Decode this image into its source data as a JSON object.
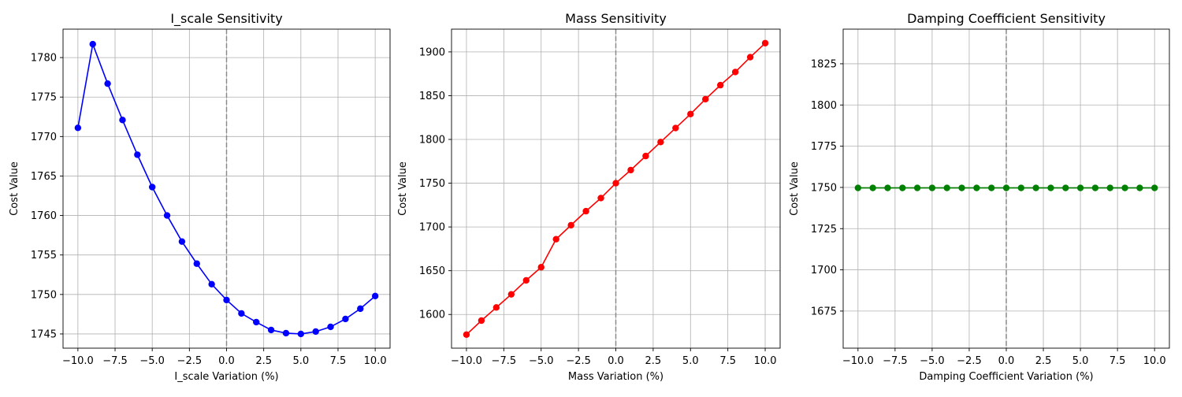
{
  "chart_data": [
    {
      "type": "line",
      "title": "I_scale Sensitivity",
      "xlabel": "I_scale Variation (%)",
      "ylabel": "Cost Value",
      "xlim": [
        -11,
        11
      ],
      "ylim": [
        1743.2,
        1783.6
      ],
      "xticks": [
        -10.0,
        -7.5,
        -5.0,
        -2.5,
        0.0,
        2.5,
        5.0,
        7.5,
        10.0
      ],
      "xtick_labels": [
        "−10.0",
        "−7.5",
        "−5.0",
        "−2.5",
        "0.0",
        "2.5",
        "5.0",
        "7.5",
        "10.0"
      ],
      "yticks": [
        1745,
        1750,
        1755,
        1760,
        1765,
        1770,
        1775,
        1780
      ],
      "ytick_labels": [
        "1745",
        "1750",
        "1755",
        "1760",
        "1765",
        "1770",
        "1775",
        "1780"
      ],
      "grid": true,
      "reference_line_x": 0,
      "color": "#0000ff",
      "x": [
        -10,
        -9,
        -8,
        -7,
        -6,
        -5,
        -4,
        -3,
        -2,
        -1,
        0,
        1,
        2,
        3,
        4,
        5,
        6,
        7,
        8,
        9,
        10
      ],
      "y": [
        1771.1,
        1781.7,
        1776.7,
        1772.1,
        1767.7,
        1763.6,
        1760.0,
        1756.7,
        1753.9,
        1751.3,
        1749.3,
        1747.6,
        1746.5,
        1745.5,
        1745.1,
        1745.0,
        1745.3,
        1745.9,
        1746.9,
        1748.2,
        1749.8
      ]
    },
    {
      "type": "line",
      "title": "Mass Sensitivity",
      "xlabel": "Mass Variation (%)",
      "ylabel": "Cost Value",
      "xlim": [
        -11,
        11
      ],
      "ylim": [
        1561.5,
        1926.0
      ],
      "xticks": [
        -10.0,
        -7.5,
        -5.0,
        -2.5,
        0.0,
        2.5,
        5.0,
        7.5,
        10.0
      ],
      "xtick_labels": [
        "−10.0",
        "−7.5",
        "−5.0",
        "−2.5",
        "0.0",
        "2.5",
        "5.0",
        "7.5",
        "10.0"
      ],
      "yticks": [
        1600,
        1650,
        1700,
        1750,
        1800,
        1850,
        1900
      ],
      "ytick_labels": [
        "1600",
        "1650",
        "1700",
        "1750",
        "1800",
        "1850",
        "1900"
      ],
      "grid": true,
      "reference_line_x": 0,
      "color": "#ff0000",
      "x": [
        -10,
        -9,
        -8,
        -7,
        -6,
        -5,
        -4,
        -3,
        -2,
        -1,
        0,
        1,
        2,
        3,
        4,
        5,
        6,
        7,
        8,
        9,
        10
      ],
      "y": [
        1577,
        1593,
        1608,
        1623,
        1639,
        1654,
        1686,
        1702,
        1718,
        1733,
        1750,
        1765,
        1781,
        1797,
        1813,
        1829,
        1846,
        1862,
        1877,
        1894,
        1910
      ]
    },
    {
      "type": "line",
      "title": "Damping Coefficient Sensitivity",
      "xlabel": "Damping Coefficient Variation (%)",
      "ylabel": "Cost Value",
      "xlim": [
        -11,
        11
      ],
      "ylim": [
        1652.5,
        1846.0
      ],
      "xticks": [
        -10.0,
        -7.5,
        -5.0,
        -2.5,
        0.0,
        2.5,
        5.0,
        7.5,
        10.0
      ],
      "xtick_labels": [
        "−10.0",
        "−7.5",
        "−5.0",
        "−2.5",
        "0.0",
        "2.5",
        "5.0",
        "7.5",
        "10.0"
      ],
      "yticks": [
        1675,
        1700,
        1725,
        1750,
        1775,
        1800,
        1825
      ],
      "ytick_labels": [
        "1675",
        "1700",
        "1725",
        "1750",
        "1775",
        "1800",
        "1825"
      ],
      "grid": true,
      "reference_line_x": 0,
      "color": "#008000",
      "x": [
        -10,
        -9,
        -8,
        -7,
        -6,
        -5,
        -4,
        -3,
        -2,
        -1,
        0,
        1,
        2,
        3,
        4,
        5,
        6,
        7,
        8,
        9,
        10
      ],
      "y": [
        1749.7,
        1749.7,
        1749.7,
        1749.7,
        1749.7,
        1749.7,
        1749.7,
        1749.7,
        1749.7,
        1749.7,
        1749.7,
        1749.7,
        1749.7,
        1749.7,
        1749.7,
        1749.7,
        1749.7,
        1749.7,
        1749.7,
        1749.7,
        1749.7
      ]
    }
  ]
}
